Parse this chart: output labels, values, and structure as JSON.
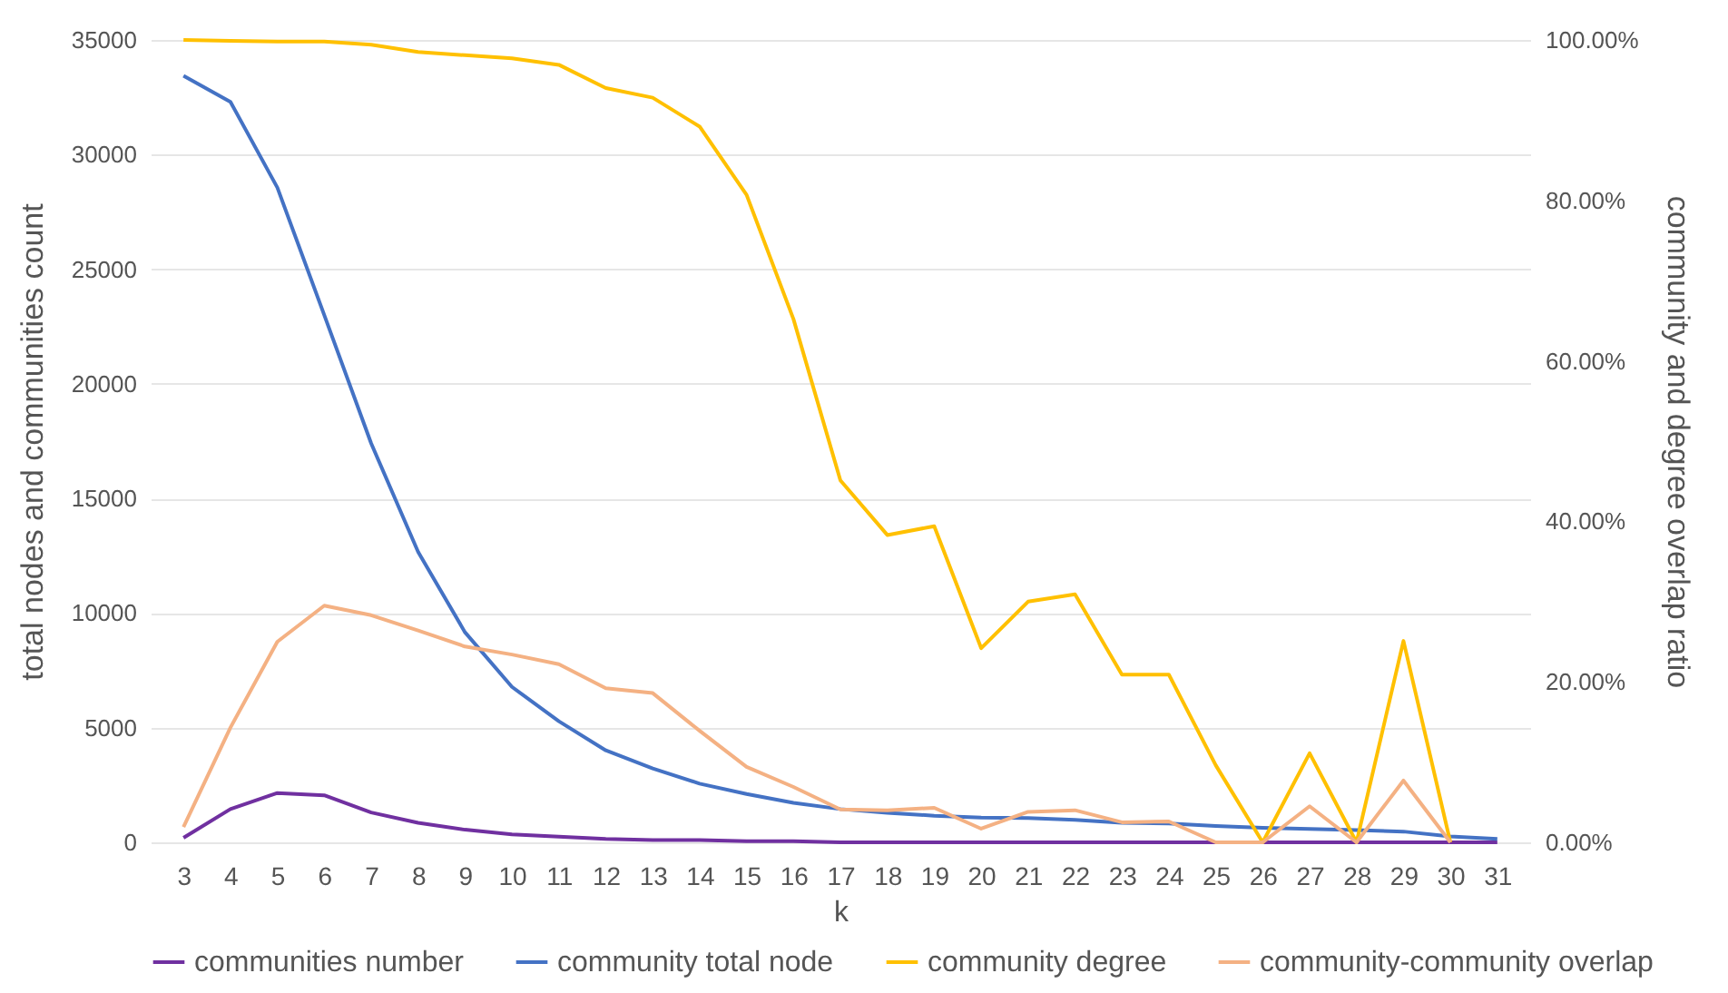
{
  "chart_data": {
    "type": "line",
    "xlabel": "k",
    "ylabel": "total nodes and communities count",
    "y2label": "community and degree overlap ratio",
    "categories": [
      "3",
      "4",
      "5",
      "6",
      "7",
      "8",
      "9",
      "10",
      "11",
      "12",
      "13",
      "14",
      "15",
      "16",
      "17",
      "18",
      "19",
      "20",
      "21",
      "22",
      "23",
      "24",
      "25",
      "26",
      "27",
      "28",
      "29",
      "30",
      "31"
    ],
    "series": [
      {
        "name": "communities number",
        "color": "#7030a0",
        "values": [
          200,
          1450,
          2150,
          2050,
          1300,
          850,
          550,
          350,
          250,
          150,
          100,
          100,
          50,
          50,
          0,
          0,
          0,
          0,
          0,
          0,
          0,
          0,
          0,
          0,
          0,
          0,
          0,
          0,
          0
        ]
      },
      {
        "name": "community total node",
        "color": "#4472c4",
        "values": [
          33440,
          32300,
          28560,
          23000,
          17400,
          12670,
          9160,
          6780,
          5280,
          4010,
          3220,
          2560,
          2110,
          1720,
          1450,
          1290,
          1160,
          1080,
          1060,
          980,
          850,
          820,
          710,
          630,
          580,
          530,
          470,
          260,
          150
        ]
      },
      {
        "name": "community degree",
        "color": "#ffc000",
        "axis": "y2",
        "values": [
          100,
          99.9,
          99.8,
          99.8,
          99.4,
          98.5,
          98.1,
          97.7,
          96.9,
          94.0,
          92.8,
          89.2,
          80.7,
          65.2,
          45.1,
          38.3,
          39.4,
          24.2,
          30.0,
          30.9,
          20.9,
          20.9,
          9.6,
          0,
          11.1,
          0,
          25.1,
          0,
          null
        ]
      },
      {
        "name": "community-community overlap",
        "color": "#f4b183",
        "axis": "y2",
        "values": [
          1.9,
          14.3,
          25.0,
          29.5,
          28.3,
          26.4,
          24.4,
          23.4,
          22.2,
          19.2,
          18.6,
          13.9,
          9.4,
          6.9,
          4.1,
          4.0,
          4.3,
          1.7,
          3.8,
          4.0,
          2.5,
          2.6,
          0,
          0,
          4.5,
          0,
          7.7,
          0,
          null
        ]
      }
    ],
    "ylim": [
      0,
      35000
    ],
    "yticks": [
      0,
      5000,
      10000,
      15000,
      20000,
      25000,
      30000,
      35000
    ],
    "y2lim": [
      0,
      100
    ],
    "y2ticks": [
      {
        "value": 0,
        "label": "0.00%"
      },
      {
        "value": 20,
        "label": "20.00%"
      },
      {
        "value": 40,
        "label": "40.00%"
      },
      {
        "value": 60,
        "label": "60.00%"
      },
      {
        "value": 80,
        "label": "80.00%"
      },
      {
        "value": 100,
        "label": "100.00%"
      }
    ],
    "grid": "y",
    "legend": "bottom",
    "marker": "none",
    "line_style": "solid"
  }
}
